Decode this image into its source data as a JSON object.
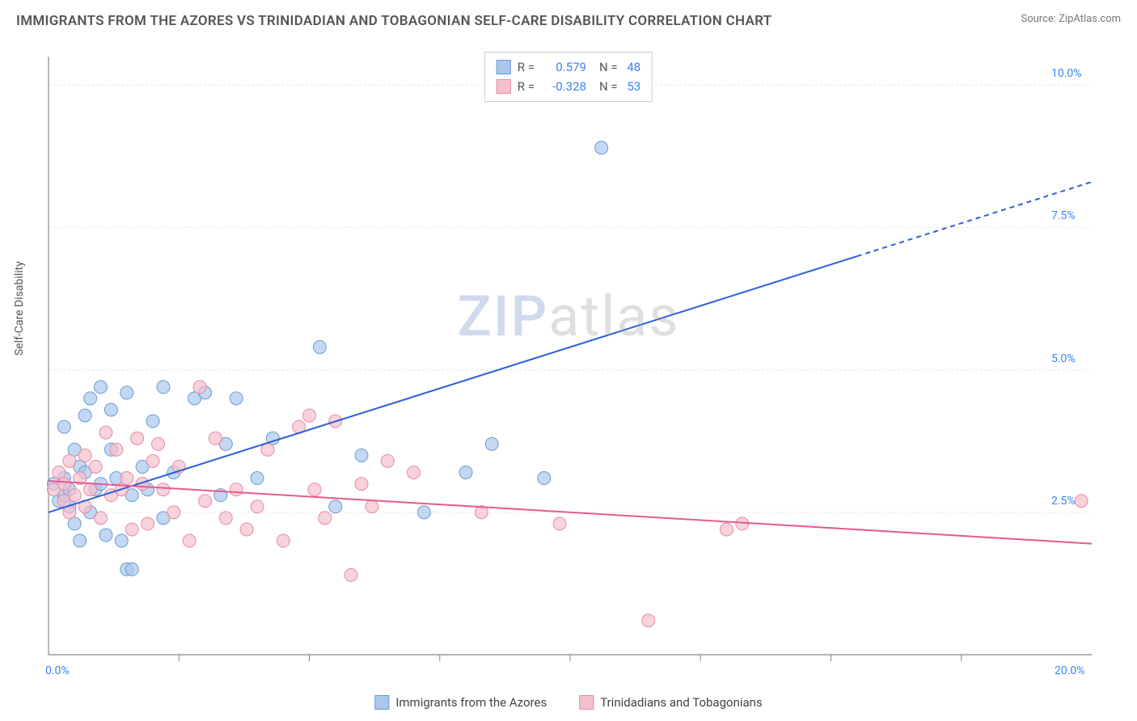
{
  "header": {
    "title": "IMMIGRANTS FROM THE AZORES VS TRINIDADIAN AND TOBAGONIAN SELF-CARE DISABILITY CORRELATION CHART",
    "source_label": "Source: ",
    "source_name": "ZipAtlas.com"
  },
  "chart": {
    "ylabel": "Self-Care Disability",
    "x_min": 0.0,
    "x_max": 20.0,
    "y_min": 0.0,
    "y_max": 10.5,
    "x_tick_start_label": "0.0%",
    "x_tick_end_label": "20.0%",
    "y_ticks": [
      2.5,
      5.0,
      7.5,
      10.0
    ],
    "y_tick_labels": [
      "2.5%",
      "5.0%",
      "7.5%",
      "10.0%"
    ],
    "x_minor_ticks": [
      2.5,
      5.0,
      7.5,
      10.0,
      12.5,
      15.0,
      17.5
    ],
    "grid_color": "#e5e5e5",
    "axis_color": "#888888",
    "background": "#ffffff",
    "watermark": "ZIPatlas",
    "series": [
      {
        "name": "Immigrants from the Azores",
        "color_fill": "#a9c7ec",
        "color_stroke": "#6b9bd1",
        "line_color": "#2b5fd9",
        "marker_radius": 8,
        "r": "0.579",
        "n": "48",
        "trend": {
          "x1": 0.0,
          "y1": 2.5,
          "x2": 20.0,
          "y2": 8.3,
          "solid_until_x": 15.5
        },
        "points": [
          [
            0.1,
            3.0
          ],
          [
            0.2,
            2.7
          ],
          [
            0.3,
            2.8
          ],
          [
            0.3,
            3.1
          ],
          [
            0.4,
            2.6
          ],
          [
            0.4,
            2.9
          ],
          [
            0.5,
            3.6
          ],
          [
            0.5,
            2.3
          ],
          [
            0.6,
            2.0
          ],
          [
            0.6,
            3.3
          ],
          [
            0.7,
            4.2
          ],
          [
            0.8,
            2.5
          ],
          [
            0.8,
            4.5
          ],
          [
            0.9,
            2.9
          ],
          [
            1.0,
            3.0
          ],
          [
            1.0,
            4.7
          ],
          [
            1.1,
            2.1
          ],
          [
            1.2,
            4.3
          ],
          [
            1.3,
            3.1
          ],
          [
            1.4,
            2.0
          ],
          [
            1.5,
            4.6
          ],
          [
            1.5,
            1.5
          ],
          [
            1.6,
            2.8
          ],
          [
            1.6,
            1.5
          ],
          [
            1.8,
            3.3
          ],
          [
            1.9,
            2.9
          ],
          [
            2.0,
            4.1
          ],
          [
            2.2,
            4.7
          ],
          [
            2.2,
            2.4
          ],
          [
            2.4,
            3.2
          ],
          [
            2.8,
            4.5
          ],
          [
            3.0,
            4.6
          ],
          [
            3.3,
            2.8
          ],
          [
            3.4,
            3.7
          ],
          [
            3.6,
            4.5
          ],
          [
            4.0,
            3.1
          ],
          [
            4.3,
            3.8
          ],
          [
            5.2,
            5.4
          ],
          [
            5.5,
            2.6
          ],
          [
            6.0,
            3.5
          ],
          [
            7.2,
            2.5
          ],
          [
            8.0,
            3.2
          ],
          [
            8.5,
            3.7
          ],
          [
            9.5,
            3.1
          ],
          [
            10.6,
            8.9
          ],
          [
            0.3,
            4.0
          ],
          [
            0.7,
            3.2
          ],
          [
            1.2,
            3.6
          ]
        ]
      },
      {
        "name": "Trinidadians and Tobagonians",
        "color_fill": "#f4c0cd",
        "color_stroke": "#e88aa5",
        "line_color": "#e75a8b",
        "marker_radius": 8,
        "r": "-0.328",
        "n": "53",
        "trend": {
          "x1": 0.0,
          "y1": 3.05,
          "x2": 20.0,
          "y2": 1.95,
          "solid_until_x": 20.0
        },
        "points": [
          [
            0.1,
            2.9
          ],
          [
            0.2,
            3.2
          ],
          [
            0.3,
            2.7
          ],
          [
            0.3,
            3.0
          ],
          [
            0.4,
            3.4
          ],
          [
            0.4,
            2.5
          ],
          [
            0.5,
            2.8
          ],
          [
            0.6,
            3.1
          ],
          [
            0.7,
            2.6
          ],
          [
            0.7,
            3.5
          ],
          [
            0.8,
            2.9
          ],
          [
            0.9,
            3.3
          ],
          [
            1.0,
            2.4
          ],
          [
            1.1,
            3.9
          ],
          [
            1.2,
            2.8
          ],
          [
            1.3,
            3.6
          ],
          [
            1.4,
            2.9
          ],
          [
            1.5,
            3.1
          ],
          [
            1.6,
            2.2
          ],
          [
            1.7,
            3.8
          ],
          [
            1.8,
            3.0
          ],
          [
            1.9,
            2.3
          ],
          [
            2.0,
            3.4
          ],
          [
            2.2,
            2.9
          ],
          [
            2.4,
            2.5
          ],
          [
            2.5,
            3.3
          ],
          [
            2.7,
            2.0
          ],
          [
            2.9,
            4.7
          ],
          [
            3.0,
            2.7
          ],
          [
            3.2,
            3.8
          ],
          [
            3.4,
            2.4
          ],
          [
            3.6,
            2.9
          ],
          [
            3.8,
            2.2
          ],
          [
            4.0,
            2.6
          ],
          [
            4.2,
            3.6
          ],
          [
            4.5,
            2.0
          ],
          [
            4.8,
            4.0
          ],
          [
            5.0,
            4.2
          ],
          [
            5.1,
            2.9
          ],
          [
            5.3,
            2.4
          ],
          [
            5.5,
            4.1
          ],
          [
            5.8,
            1.4
          ],
          [
            6.0,
            3.0
          ],
          [
            6.2,
            2.6
          ],
          [
            6.5,
            3.4
          ],
          [
            7.0,
            3.2
          ],
          [
            8.3,
            2.5
          ],
          [
            9.8,
            2.3
          ],
          [
            11.5,
            0.6
          ],
          [
            13.0,
            2.2
          ],
          [
            13.3,
            2.3
          ],
          [
            19.8,
            2.7
          ],
          [
            2.1,
            3.7
          ]
        ]
      }
    ]
  },
  "legend_top": {
    "r_label": "R  =",
    "n_label": "N  ="
  },
  "legend_bottom": [
    {
      "label": "Immigrants from the Azores"
    },
    {
      "label": "Trinidadians and Tobagonians"
    }
  ]
}
